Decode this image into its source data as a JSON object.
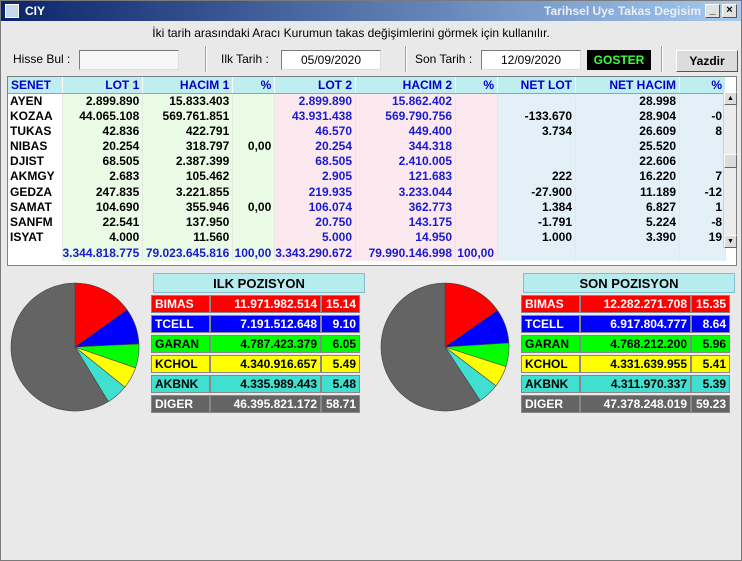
{
  "window": {
    "title": "CIY",
    "subtitle": "Tarihsel Uye Takas Degisim"
  },
  "description": "İki tarih arasındaki  Aracı Kurumun takas değişimlerini görmek için kullanılır.",
  "toolbar": {
    "search_label": "Hisse Bul :",
    "search_value": "",
    "start_label": "Ilk Tarih :",
    "start_value": "05/09/2020",
    "end_label": "Son Tarih :",
    "end_value": "12/09/2020",
    "show_label": "GOSTER",
    "print_label": "Yazdir"
  },
  "colors": {
    "green_col": "#eafbe6",
    "pink_col": "#fbe9ef",
    "blue_col": "#e3f0f7",
    "header": "#bfeef0",
    "show_text": "#3cff3c"
  },
  "grid": {
    "columns": [
      "SENET",
      "LOT 1",
      "HACIM 1",
      "%",
      "LOT 2",
      "HACIM 2",
      "%",
      "NET LOT",
      "NET HACIM",
      "%"
    ],
    "rows": [
      [
        "AYEN",
        "2.899.890",
        "15.833.403",
        "",
        "2.899.890",
        "15.862.402",
        "",
        "",
        "28.998",
        ""
      ],
      [
        "KOZAA",
        "44.065.108",
        "569.761.851",
        "",
        "43.931.438",
        "569.790.756",
        "",
        "-133.670",
        "28.904",
        "-0"
      ],
      [
        "TUKAS",
        "42.836",
        "422.791",
        "",
        "46.570",
        "449.400",
        "",
        "3.734",
        "26.609",
        "8"
      ],
      [
        "NIBAS",
        "20.254",
        "318.797",
        "0,00",
        "20.254",
        "344.318",
        "",
        "",
        "25.520",
        ""
      ],
      [
        "DJIST",
        "68.505",
        "2.387.399",
        "",
        "68.505",
        "2.410.005",
        "",
        "",
        "22.606",
        ""
      ],
      [
        "AKMGY",
        "2.683",
        "105.462",
        "",
        "2.905",
        "121.683",
        "",
        "222",
        "16.220",
        "7"
      ],
      [
        "GEDZA",
        "247.835",
        "3.221.855",
        "",
        "219.935",
        "3.233.044",
        "",
        "-27.900",
        "11.189",
        "-12"
      ],
      [
        "SAMAT",
        "104.690",
        "355.946",
        "0,00",
        "106.074",
        "362.773",
        "",
        "1.384",
        "6.827",
        "1"
      ],
      [
        "SANFM",
        "22.541",
        "137.950",
        "",
        "20.750",
        "143.175",
        "",
        "-1.791",
        "5.224",
        "-8"
      ],
      [
        "ISYAT",
        "4.000",
        "11.560",
        "",
        "5.000",
        "14.950",
        "",
        "1.000",
        "3.390",
        "19"
      ]
    ],
    "totals": [
      "",
      "3.344.818.775",
      "79.023.645.816",
      "100,00",
      "3.343.290.672",
      "79.990.146.998",
      "100,00",
      "",
      "",
      ""
    ]
  },
  "ilk": {
    "title": "ILK POZISYON",
    "rows": [
      {
        "name": "BIMAS",
        "value": "11.971.982.514",
        "pct": "15.14",
        "pct_num": 15.14,
        "color": "#ff0000",
        "text": "#ffffff"
      },
      {
        "name": "TCELL",
        "value": "7.191.512.648",
        "pct": "9.10",
        "pct_num": 9.1,
        "color": "#0000ff",
        "text": "#ffffff"
      },
      {
        "name": "GARAN",
        "value": "4.787.423.379",
        "pct": "6.05",
        "pct_num": 6.05,
        "color": "#00ff00",
        "text": "#000000"
      },
      {
        "name": "KCHOL",
        "value": "4.340.916.657",
        "pct": "5.49",
        "pct_num": 5.49,
        "color": "#ffff00",
        "text": "#000000"
      },
      {
        "name": "AKBNK",
        "value": "4.335.989.443",
        "pct": "5.48",
        "pct_num": 5.48,
        "color": "#40e0d0",
        "text": "#000000"
      },
      {
        "name": "DIGER",
        "value": "46.395.821.172",
        "pct": "58.71",
        "pct_num": 58.71,
        "color": "#646464",
        "text": "#ffffff"
      }
    ]
  },
  "son": {
    "title": "SON POZISYON",
    "rows": [
      {
        "name": "BIMAS",
        "value": "12.282.271.708",
        "pct": "15.35",
        "pct_num": 15.35,
        "color": "#ff0000",
        "text": "#ffffff"
      },
      {
        "name": "TCELL",
        "value": "6.917.804.777",
        "pct": "8.64",
        "pct_num": 8.64,
        "color": "#0000ff",
        "text": "#ffffff"
      },
      {
        "name": "GARAN",
        "value": "4.768.212.200",
        "pct": "5.96",
        "pct_num": 5.96,
        "color": "#00ff00",
        "text": "#000000"
      },
      {
        "name": "KCHOL",
        "value": "4.331.639.955",
        "pct": "5.41",
        "pct_num": 5.41,
        "color": "#ffff00",
        "text": "#000000"
      },
      {
        "name": "AKBNK",
        "value": "4.311.970.337",
        "pct": "5.39",
        "pct_num": 5.39,
        "color": "#40e0d0",
        "text": "#000000"
      },
      {
        "name": "DIGER",
        "value": "47.378.248.019",
        "pct": "59.23",
        "pct_num": 59.23,
        "color": "#646464",
        "text": "#ffffff"
      }
    ]
  }
}
